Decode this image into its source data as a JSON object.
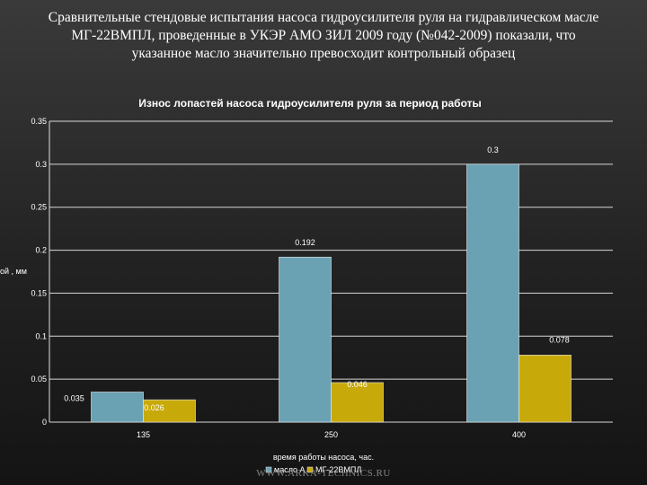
{
  "slide": {
    "heading_lines": [
      "Сравнительные стендовые испытания насоса гидроусилителя руля на гидравлическом масле",
      "МГ-22ВМПЛ, проведенные в УКЭР АМО ЗИЛ 2009 году (№042-2009) показали, что",
      "указанное масло значительно превосходит контрольный образец"
    ],
    "watermark": "WWW.ARKA-TECHNICS.RU"
  },
  "chart_data": {
    "type": "bar",
    "title": "Износ лопастей насоса гидроусилителя руля за период работы",
    "xlabel": "время работы насоса, час.",
    "ylabel": "ой , мм",
    "categories": [
      "135",
      "250",
      "400"
    ],
    "series": [
      {
        "name": "масло А",
        "values": [
          0.035,
          0.192,
          0.3
        ],
        "color": "#6aa2b4"
      },
      {
        "name": "МГ-22ВМПЛ",
        "values": [
          0.026,
          0.046,
          0.078
        ],
        "color": "#c8a90a"
      }
    ],
    "value_labels": [
      [
        "0.035",
        "0.192",
        "0.3"
      ],
      [
        "0.026",
        "0.046",
        "0.078"
      ]
    ],
    "ylim": [
      0,
      0.35
    ],
    "yticks": [
      0,
      0.05,
      0.1,
      0.15,
      0.2,
      0.25,
      0.3,
      0.35
    ],
    "ytick_labels": [
      "0",
      "0.05",
      "0.1",
      "0.15",
      "0.2",
      "0.25",
      "0.3",
      "0.35"
    ],
    "grid": true,
    "legend_position": "bottom",
    "colors": {
      "gridline": "#d8d8d8",
      "axis": "#e0e0e0"
    }
  }
}
